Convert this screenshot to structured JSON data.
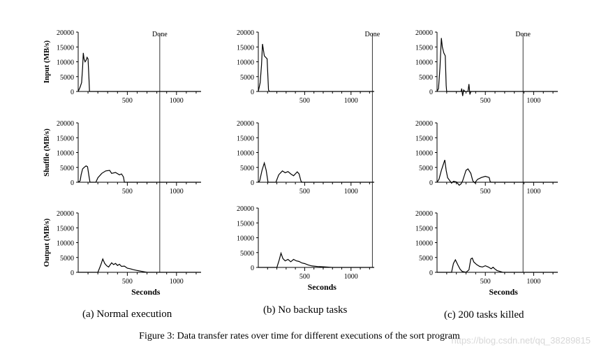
{
  "figure_caption": "Figure 3: Data transfer rates over time for different executions of the sort program",
  "watermark": "https://blog.csdn.net/qq_38289815",
  "column_captions": [
    "(a) Normal execution",
    "(b) No backup tasks",
    "(c) 200 tasks killed"
  ],
  "chart_data": {
    "type": "line",
    "rows": [
      "Input (MB/s)",
      "Shuffle (MB/s)",
      "Output (MB/s)"
    ],
    "xlabel": "Seconds",
    "xlim": [
      0,
      1250
    ],
    "xticks": [
      500,
      1000
    ],
    "ylim": [
      0,
      20000
    ],
    "yticks": [
      0,
      5000,
      10000,
      15000,
      20000
    ],
    "done_label": "Done",
    "panels": [
      {
        "column": 0,
        "done_x": 830,
        "input": [
          [
            0,
            0
          ],
          [
            20,
            1500
          ],
          [
            35,
            3000
          ],
          [
            45,
            8000
          ],
          [
            52,
            13000
          ],
          [
            60,
            11000
          ],
          [
            70,
            10000
          ],
          [
            80,
            10500
          ],
          [
            90,
            11500
          ],
          [
            100,
            11000
          ],
          [
            110,
            4000
          ],
          [
            115,
            0
          ],
          [
            1250,
            0
          ]
        ],
        "shuffle": [
          [
            0,
            0
          ],
          [
            20,
            500
          ],
          [
            30,
            2500
          ],
          [
            45,
            4500
          ],
          [
            60,
            5000
          ],
          [
            80,
            5500
          ],
          [
            95,
            5200
          ],
          [
            110,
            2000
          ],
          [
            120,
            0
          ],
          [
            180,
            0
          ],
          [
            200,
            1500
          ],
          [
            240,
            3000
          ],
          [
            280,
            3800
          ],
          [
            320,
            4000
          ],
          [
            340,
            3000
          ],
          [
            380,
            3300
          ],
          [
            420,
            2500
          ],
          [
            440,
            2800
          ],
          [
            460,
            1800
          ],
          [
            470,
            0
          ],
          [
            1250,
            0
          ]
        ],
        "output": [
          [
            0,
            0
          ],
          [
            200,
            0
          ],
          [
            230,
            2500
          ],
          [
            250,
            4500
          ],
          [
            270,
            3000
          ],
          [
            290,
            2200
          ],
          [
            310,
            1800
          ],
          [
            340,
            3200
          ],
          [
            360,
            2600
          ],
          [
            380,
            3000
          ],
          [
            400,
            2300
          ],
          [
            420,
            2700
          ],
          [
            440,
            2000
          ],
          [
            470,
            2100
          ],
          [
            500,
            1400
          ],
          [
            530,
            1200
          ],
          [
            560,
            900
          ],
          [
            600,
            600
          ],
          [
            650,
            300
          ],
          [
            700,
            0
          ],
          [
            1250,
            0
          ]
        ]
      },
      {
        "column": 1,
        "done_x": 1230,
        "input": [
          [
            0,
            0
          ],
          [
            20,
            3000
          ],
          [
            35,
            9000
          ],
          [
            45,
            16000
          ],
          [
            55,
            14000
          ],
          [
            65,
            12000
          ],
          [
            80,
            11500
          ],
          [
            95,
            11000
          ],
          [
            110,
            500
          ],
          [
            120,
            0
          ],
          [
            1250,
            0
          ]
        ],
        "shuffle": [
          [
            0,
            0
          ],
          [
            15,
            500
          ],
          [
            40,
            4000
          ],
          [
            65,
            6500
          ],
          [
            85,
            4000
          ],
          [
            105,
            0
          ],
          [
            190,
            0
          ],
          [
            220,
            2500
          ],
          [
            260,
            3800
          ],
          [
            290,
            3200
          ],
          [
            320,
            3600
          ],
          [
            350,
            2800
          ],
          [
            380,
            2200
          ],
          [
            420,
            3500
          ],
          [
            440,
            2800
          ],
          [
            460,
            400
          ],
          [
            470,
            0
          ],
          [
            1250,
            0
          ]
        ],
        "output": [
          [
            0,
            0
          ],
          [
            200,
            0
          ],
          [
            225,
            2500
          ],
          [
            245,
            4800
          ],
          [
            265,
            3000
          ],
          [
            290,
            2200
          ],
          [
            320,
            2700
          ],
          [
            350,
            1900
          ],
          [
            380,
            2700
          ],
          [
            410,
            2200
          ],
          [
            440,
            2000
          ],
          [
            470,
            1500
          ],
          [
            500,
            1300
          ],
          [
            540,
            800
          ],
          [
            580,
            500
          ],
          [
            640,
            300
          ],
          [
            700,
            200
          ],
          [
            800,
            0
          ],
          [
            1250,
            0
          ]
        ]
      },
      {
        "column": 2,
        "done_x": 890,
        "input": [
          [
            0,
            0
          ],
          [
            15,
            1000
          ],
          [
            30,
            8000
          ],
          [
            45,
            18000
          ],
          [
            55,
            15000
          ],
          [
            70,
            13000
          ],
          [
            85,
            12000
          ],
          [
            95,
            2000
          ],
          [
            100,
            0
          ],
          [
            250,
            0
          ],
          [
            255,
            1000
          ],
          [
            265,
            -1500
          ],
          [
            275,
            500
          ],
          [
            290,
            0
          ],
          [
            320,
            0
          ],
          [
            330,
            2500
          ],
          [
            340,
            -1000
          ],
          [
            350,
            0
          ],
          [
            1250,
            0
          ]
        ],
        "shuffle": [
          [
            0,
            0
          ],
          [
            20,
            1000
          ],
          [
            45,
            4000
          ],
          [
            65,
            6000
          ],
          [
            80,
            7500
          ],
          [
            95,
            4000
          ],
          [
            110,
            1500
          ],
          [
            130,
            600
          ],
          [
            150,
            -300
          ],
          [
            170,
            300
          ],
          [
            200,
            100
          ],
          [
            230,
            -1000
          ],
          [
            250,
            -500
          ],
          [
            265,
            500
          ],
          [
            280,
            2000
          ],
          [
            300,
            4000
          ],
          [
            320,
            4500
          ],
          [
            350,
            3000
          ],
          [
            370,
            500
          ],
          [
            390,
            -200
          ],
          [
            420,
            1000
          ],
          [
            460,
            1600
          ],
          [
            500,
            2000
          ],
          [
            540,
            1600
          ],
          [
            550,
            200
          ],
          [
            560,
            0
          ],
          [
            1250,
            0
          ]
        ],
        "output": [
          [
            0,
            0
          ],
          [
            150,
            0
          ],
          [
            170,
            3000
          ],
          [
            190,
            4200
          ],
          [
            215,
            2500
          ],
          [
            240,
            1000
          ],
          [
            260,
            300
          ],
          [
            300,
            0
          ],
          [
            330,
            800
          ],
          [
            350,
            4500
          ],
          [
            365,
            4800
          ],
          [
            380,
            3500
          ],
          [
            410,
            2600
          ],
          [
            440,
            2000
          ],
          [
            470,
            1800
          ],
          [
            500,
            2200
          ],
          [
            530,
            1800
          ],
          [
            560,
            1200
          ],
          [
            580,
            1700
          ],
          [
            600,
            1100
          ],
          [
            620,
            600
          ],
          [
            650,
            300
          ],
          [
            680,
            0
          ],
          [
            1250,
            0
          ]
        ]
      }
    ]
  }
}
